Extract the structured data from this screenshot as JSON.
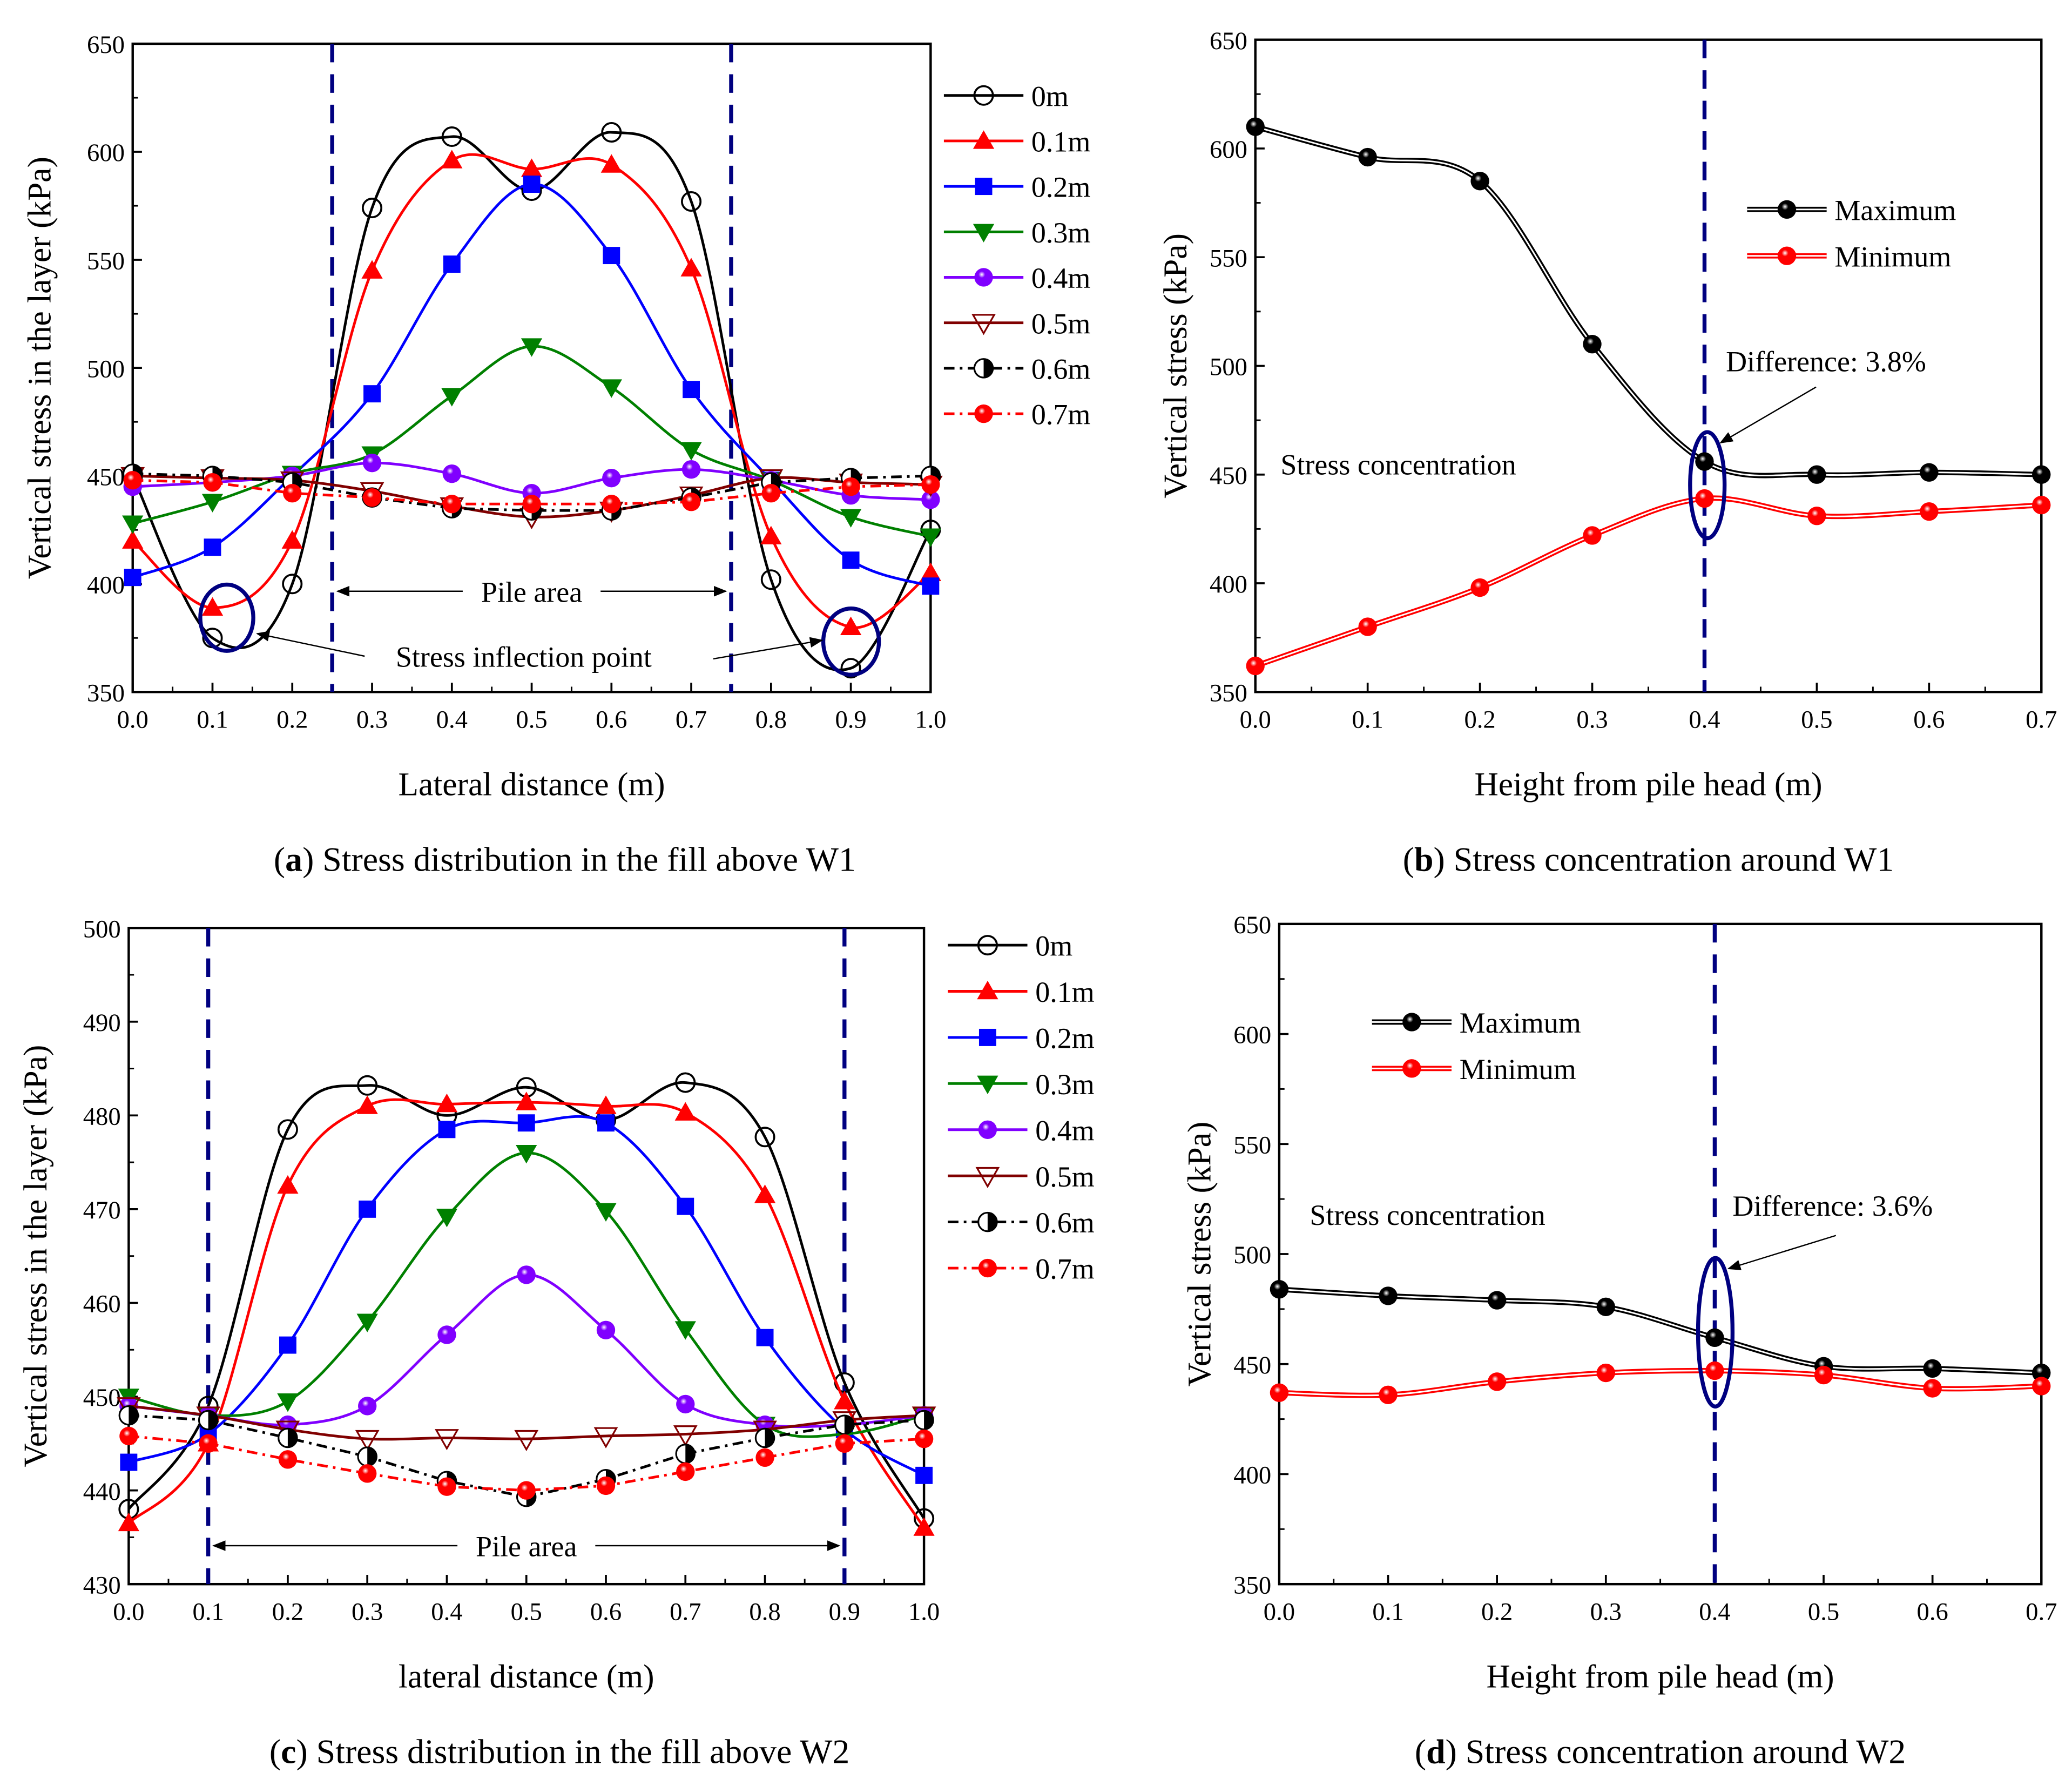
{
  "styles": {
    "0m": {
      "color": "#000000",
      "marker": "circle-open",
      "dash": ""
    },
    "0.1m": {
      "color": "#ff0000",
      "marker": "triangle-up",
      "dash": ""
    },
    "0.2m": {
      "color": "#0000ff",
      "marker": "square",
      "dash": ""
    },
    "0.3m": {
      "color": "#008000",
      "marker": "triangle-down",
      "dash": ""
    },
    "0.4m": {
      "color": "#8000ff",
      "marker": "sphere",
      "dash": ""
    },
    "0.5m": {
      "color": "#800000",
      "marker": "triangle-down-open",
      "dash": ""
    },
    "0.6m": {
      "color": "#000000",
      "marker": "half-circle",
      "dash": "8,4,2,4"
    },
    "0.7m": {
      "color": "#ff0000",
      "marker": "sphere",
      "dash": "8,4,2,4"
    },
    "Maximum": {
      "color": "#000000",
      "marker": "sphere-dark",
      "dash": ""
    },
    "Minimum": {
      "color": "#ff0000",
      "marker": "sphere",
      "dash": ""
    }
  },
  "annotation_color": "#000080",
  "chart_data": [
    {
      "id": "a",
      "type": "line",
      "caption_letter": "a",
      "caption": " Stress distribution in the fill above W1",
      "xlabel": "Lateral distance (m)",
      "ylabel": "Vertical stress in the layer (kPa)",
      "xlim": [
        0,
        1
      ],
      "ylim": [
        350,
        650
      ],
      "xticks": [
        "0.0",
        "0.1",
        "0.2",
        "0.3",
        "0.4",
        "0.5",
        "0.6",
        "0.7",
        "0.8",
        "0.9",
        "1.0"
      ],
      "yticks": [
        "350",
        "400",
        "450",
        "500",
        "550",
        "600",
        "650"
      ],
      "x": [
        0,
        0.1,
        0.2,
        0.3,
        0.4,
        0.5,
        0.6,
        0.7,
        0.8,
        0.9,
        1.0
      ],
      "series": [
        {
          "name": "0m",
          "values": [
            450,
            375,
            400,
            574,
            607,
            582,
            609,
            577,
            402,
            361,
            425
          ]
        },
        {
          "name": "0.1m",
          "values": [
            420,
            389,
            420,
            545,
            596,
            592,
            594,
            546,
            422,
            380,
            405
          ]
        },
        {
          "name": "0.2m",
          "values": [
            403,
            417,
            450,
            488,
            548,
            585,
            552,
            490,
            448,
            411,
            399
          ]
        },
        {
          "name": "0.3m",
          "values": [
            428,
            438,
            451,
            460,
            487,
            510,
            491,
            462,
            448,
            431,
            422
          ]
        },
        {
          "name": "0.4m",
          "values": [
            445,
            447,
            450,
            456,
            451,
            442,
            449,
            453,
            448,
            441,
            439
          ]
        },
        {
          "name": "0.5m",
          "values": [
            450,
            449,
            448,
            443,
            436,
            431,
            434,
            441,
            449,
            447,
            446
          ]
        },
        {
          "name": "0.6m",
          "values": [
            451,
            450,
            447,
            440,
            435,
            434,
            434,
            440,
            447,
            449,
            450
          ]
        },
        {
          "name": "0.7m",
          "values": [
            448,
            447,
            442,
            440,
            437,
            437,
            437,
            438,
            442,
            445,
            446
          ]
        }
      ],
      "pile_lines": [
        0.25,
        0.75
      ],
      "pile_label": "Pile area",
      "inflection_label": "Stress inflection point",
      "legend": "right-outside"
    },
    {
      "id": "b",
      "type": "line",
      "caption_letter": "b",
      "caption": " Stress concentration around W1",
      "xlabel": "Height from pile head (m)",
      "ylabel": "Vertical stress (kPa)",
      "xlim": [
        0,
        0.7
      ],
      "ylim": [
        350,
        650
      ],
      "xticks": [
        "0.0",
        "0.1",
        "0.2",
        "0.3",
        "0.4",
        "0.5",
        "0.6",
        "0.7"
      ],
      "yticks": [
        "350",
        "400",
        "450",
        "500",
        "550",
        "600",
        "650"
      ],
      "x": [
        0,
        0.1,
        0.2,
        0.3,
        0.4,
        0.5,
        0.6,
        0.7
      ],
      "series": [
        {
          "name": "Maximum",
          "values": [
            610,
            596,
            585,
            510,
            456,
            450,
            451,
            450
          ]
        },
        {
          "name": "Minimum",
          "values": [
            362,
            380,
            398,
            422,
            439,
            431,
            433,
            436
          ]
        }
      ],
      "marker_line": 0.4,
      "concentration_label": "Stress concentration",
      "difference_label": "Difference: 3.8%",
      "legend": "top-right"
    },
    {
      "id": "c",
      "type": "line",
      "caption_letter": "c",
      "caption": " Stress distribution in the fill above W2",
      "xlabel": "lateral distance (m)",
      "ylabel": "Vertical stress in the layer (kPa)",
      "xlim": [
        0,
        1
      ],
      "ylim": [
        430,
        500
      ],
      "xticks": [
        "0.0",
        "0.1",
        "0.2",
        "0.3",
        "0.4",
        "0.5",
        "0.6",
        "0.7",
        "0.8",
        "0.9",
        "1.0"
      ],
      "yticks": [
        "430",
        "440",
        "450",
        "460",
        "470",
        "480",
        "490",
        "500"
      ],
      "x": [
        0,
        0.1,
        0.2,
        0.3,
        0.4,
        0.5,
        0.6,
        0.7,
        0.8,
        0.9,
        1.0
      ],
      "series": [
        {
          "name": "0m",
          "values": [
            438,
            449,
            478.5,
            483.2,
            480,
            483,
            479.5,
            483.5,
            477.7,
            451.5,
            437
          ]
        },
        {
          "name": "0.1m",
          "values": [
            436.5,
            445,
            472.5,
            481,
            481.2,
            481.4,
            481,
            480.3,
            471.5,
            449.5,
            436
          ]
        },
        {
          "name": "0.2m",
          "values": [
            443,
            446,
            455.5,
            470,
            478.5,
            479.2,
            479.2,
            470.3,
            456.3,
            446.5,
            441.6
          ]
        },
        {
          "name": "0.3m",
          "values": [
            450,
            448,
            449.5,
            458,
            469.2,
            476,
            469.8,
            457.2,
            447,
            446,
            448
          ]
        },
        {
          "name": "0.4m",
          "values": [
            449,
            448,
            447,
            449,
            456.6,
            463,
            457.1,
            449.2,
            447,
            447,
            448
          ]
        },
        {
          "name": "0.5m",
          "values": [
            449,
            448,
            446.5,
            445.5,
            445.6,
            445.5,
            445.8,
            446,
            446.5,
            447.5,
            448
          ]
        },
        {
          "name": "0.6m",
          "values": [
            448,
            447.5,
            445.6,
            443.6,
            441,
            439.3,
            441.2,
            443.9,
            445.6,
            447,
            447.5
          ]
        },
        {
          "name": "0.7m",
          "values": [
            445.8,
            445,
            443.3,
            441.8,
            440.4,
            440,
            440.5,
            442,
            443.5,
            445,
            445.5
          ]
        }
      ],
      "pile_lines": [
        0.1,
        0.9
      ],
      "pile_label": "Pile area",
      "legend": "right-outside"
    },
    {
      "id": "d",
      "type": "line",
      "caption_letter": "d",
      "caption": " Stress concentration around W2",
      "xlabel": "Height from pile head (m)",
      "ylabel": "Vertical stress (kPa)",
      "xlim": [
        0,
        0.7
      ],
      "ylim": [
        350,
        650
      ],
      "xticks": [
        "0.0",
        "0.1",
        "0.2",
        "0.3",
        "0.4",
        "0.5",
        "0.6",
        "0.7"
      ],
      "yticks": [
        "350",
        "400",
        "450",
        "500",
        "550",
        "600",
        "650"
      ],
      "x": [
        0,
        0.1,
        0.2,
        0.3,
        0.4,
        0.5,
        0.6,
        0.7
      ],
      "series": [
        {
          "name": "Maximum",
          "values": [
            484,
            481,
            479,
            476,
            462,
            449,
            448,
            446
          ]
        },
        {
          "name": "Minimum",
          "values": [
            437,
            436,
            442,
            446,
            447,
            445,
            439,
            440
          ]
        }
      ],
      "marker_line": 0.4,
      "concentration_label": "Stress concentration",
      "difference_label": "Difference: 3.6%",
      "legend": "top-left"
    }
  ]
}
